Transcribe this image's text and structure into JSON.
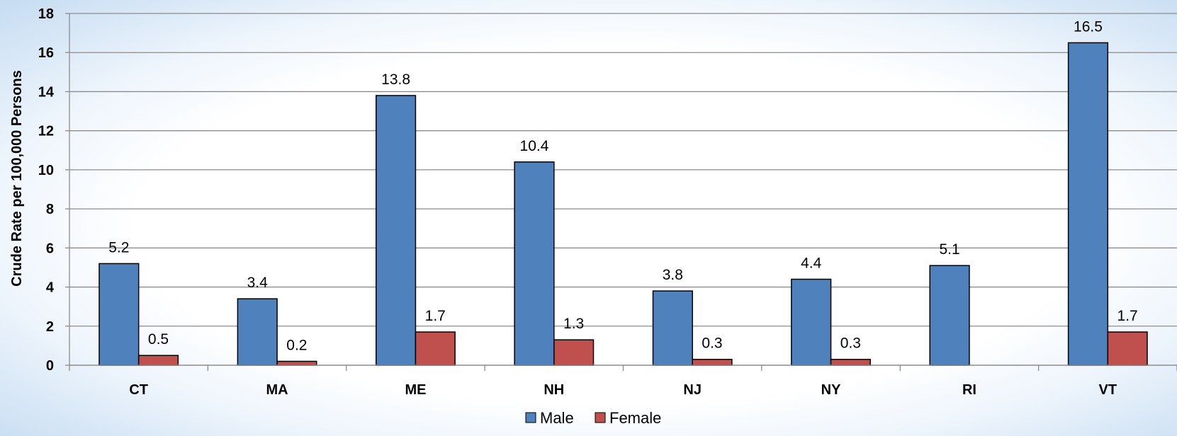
{
  "chart_data": {
    "type": "bar",
    "title": "",
    "xlabel": "",
    "ylabel": "Crude Rate per 100,000 Persons",
    "ylim": [
      0,
      18
    ],
    "yticks": [
      0,
      2,
      4,
      6,
      8,
      10,
      12,
      14,
      16,
      18
    ],
    "categories": [
      "CT",
      "MA",
      "ME",
      "NH",
      "NJ",
      "NY",
      "RI",
      "VT"
    ],
    "series": [
      {
        "name": "Male",
        "color": "#4f81bd",
        "values": [
          5.2,
          3.4,
          13.8,
          10.4,
          3.8,
          4.4,
          5.1,
          16.5
        ],
        "labels": [
          "5.2",
          "3.4",
          "13.8",
          "10.4",
          "3.8",
          "4.4",
          "5.1",
          "16.5"
        ]
      },
      {
        "name": "Female",
        "color": "#c0504d",
        "values": [
          0.5,
          0.2,
          1.7,
          1.3,
          0.3,
          0.3,
          null,
          1.7
        ],
        "labels": [
          "0.5",
          "0.2",
          "1.7",
          "1.3",
          "0.3",
          "0.3",
          null,
          "1.7"
        ]
      }
    ],
    "grid": true,
    "legend_position": "bottom-center"
  }
}
